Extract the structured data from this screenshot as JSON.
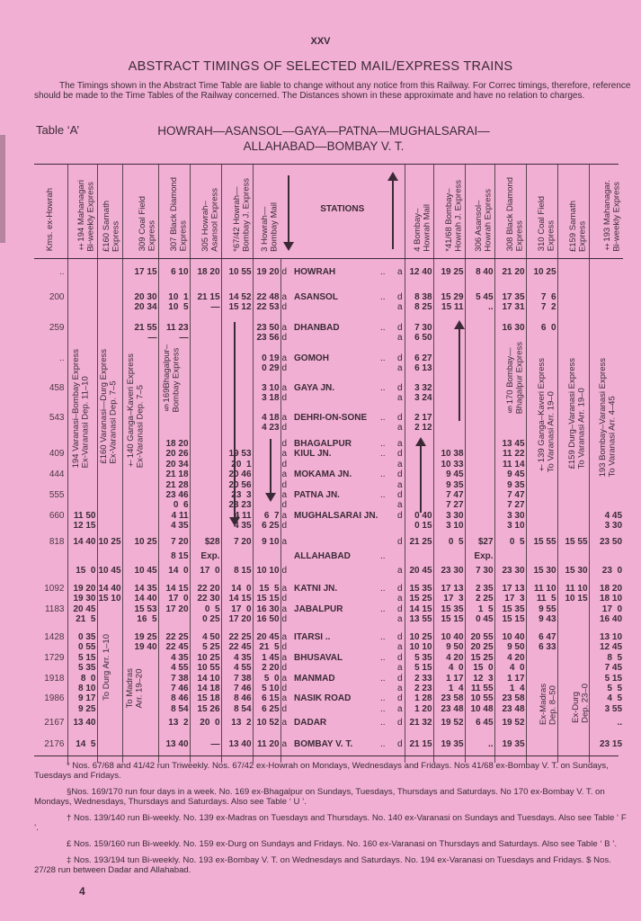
{
  "page_number_top": "XXV",
  "title": "ABSTRACT TIMINGS OF SELECTED MAIL/EXPRESS TRAINS",
  "intro": "The Timings shown in the Abstract Time Table are liable to change without any notice from this Railway. For Correc timings, therefore, reference should be made to the Time Tables of the Railway concerned. The Distances shown in these approximate and have no relation to charges.",
  "table_label": "Table ‘A’",
  "route_line1": "HOWRAH—ASANSOL—GAYA—PATNA—MUGHALSARAI—",
  "route_line2": "ALLAHABAD—BOMBAY V. T.",
  "colors": {
    "paper": "#f1afd3",
    "ink": "#3b2a36"
  },
  "table": {
    "headers": {
      "km": "Kms. ex-Howrah",
      "left": [
        "‡194 Mahanagari\nBi-weekly Express",
        "£160 Sarnath\nExpress",
        "309 Coal Field\nExpress",
        "307 Black Diamond\nExpress",
        "305 Howrah–\nAsansol Express",
        "*67/42 Howrah—\nBombay J. Express",
        "3 Howrah—\nBombay Mail"
      ],
      "stations": "STATIONS",
      "right": [
        "4 Bombay–\nHowrah Mail",
        "*41/68 Bombay–\nHowrah J. Express",
        "306 Asansol–\nHowrah Express",
        "308 Black Diamond\nExpress",
        "310 Coal Field\nExpress",
        "£159 Sarnath\nExpress",
        "‡193 Mahanagar.\nBi-weekly Express"
      ]
    },
    "rows": [
      {
        "key": "howrah",
        "km": "..",
        "left": [
          "",
          "",
          "17 15",
          "6 10",
          "18 20",
          "10 55",
          "19 20"
        ],
        "ad_l": "d",
        "station": "HOWRAH",
        "dots": "..",
        "ad_r": "a",
        "right": [
          "12 40",
          "19 25",
          "8 40",
          "21 20",
          "10 25",
          "",
          ""
        ]
      },
      {
        "key": "asansol",
        "km": "200",
        "left": [
          "",
          "",
          "20 30\n20 34",
          "10  1\n10  5",
          "21 15\n—",
          "14 52\n15 12",
          "22 48\n22 53"
        ],
        "ad_l": "a\nd",
        "station": "ASANSOL",
        "dots": "..",
        "ad_r": "d\na",
        "right": [
          "8 38\n8 25",
          "15 29\n15 11",
          "5 45\n..",
          "17 35\n17 31",
          "7  6\n7  2",
          "",
          ""
        ]
      },
      {
        "key": "dhanbad",
        "km": "259",
        "left": [
          "",
          "",
          "21 55\n—",
          "11 23\n—",
          "",
          "",
          "23 50\n23 56"
        ],
        "ad_l": "a\nd",
        "station": "DHANBAD",
        "dots": "..",
        "ad_r": "d\na",
        "right": [
          "7 30\n6 50",
          "",
          "",
          "16 30",
          "6  0",
          "",
          ""
        ]
      },
      {
        "key": "gomoh",
        "km": "..",
        "left": [
          "",
          "",
          "",
          "",
          "",
          "",
          "0 19\n0 29"
        ],
        "ad_l": "a\nd",
        "station": "GOMOH",
        "dots": "..",
        "ad_r": "d\na",
        "right": [
          "6 27\n6 13",
          "",
          "",
          "",
          "",
          "",
          ""
        ]
      },
      {
        "key": "gaya",
        "km": "458",
        "left": [
          "",
          "",
          "",
          "",
          "",
          "",
          "3 10\n3 18"
        ],
        "ad_l": "a\nd",
        "station": "GAYA JN.",
        "dots": "..",
        "ad_r": "d\na",
        "right": [
          "3 32\n3 24",
          "",
          "",
          "",
          "",
          "",
          ""
        ]
      },
      {
        "key": "dehri",
        "km": "543",
        "left": [
          "",
          "",
          "",
          "",
          "",
          "",
          "4 18\n4 23"
        ],
        "ad_l": "a\nd",
        "station": "DEHRI-ON-SONE",
        "dots": "..",
        "ad_r": "d\na",
        "right": [
          "2 17\n2 12",
          "",
          "",
          "",
          "",
          "",
          ""
        ]
      },
      {
        "key": "block",
        "km": "\n409\n\n444\n\n555\n\n660\n",
        "left": [
          "\n\n\n\n\n\n\n11 50\n12 15",
          "",
          "",
          "18 20\n20 26\n20 34\n21 18\n21 28\n23 46\n0  6\n4 11\n4 35",
          "",
          "\n19 53\n20  1\n20 46\n20 56\n23  3\n23 23\n4 11\n4 35",
          "\n\n\n\n\n\n\n6  7\n6 25"
        ],
        "ad_l": "d\na\nd\na\nd\na\nd\na\nd",
        "station": "BHAGALPUR\nKIUL JN.\n\nMOKAMA JN.\n\nPATNA JN.\n\nMUGHALSARAI JN.",
        "dots": "..\n..\n\n..\n\n..",
        "ad_r": "a\nd\na\nd\na\nd\na\nd",
        "right": [
          "\n\n\n\n\n\n\n0 40\n0 15",
          "\n10 38\n10 33\n9 45\n9 35\n7 47\n7 27\n3 30\n3 10",
          "",
          "13 45\n11 22\n11 14\n9 45\n9 35\n7 47\n7 27\n3 30\n3 10",
          "",
          "",
          "\n\n\n\n\n\n\n4 45\n3 30"
        ]
      },
      {
        "key": "allahabad",
        "km": "818",
        "left": [
          "14 40\n\n15  0",
          "10 25\n\n10 45",
          "10 25\n\n10 45",
          "7 20\n8 15\n14  0",
          "$28\nExp.\n17  0",
          "7 20\n\n8 15",
          "9 10\n\n10 10"
        ],
        "ad_l": "a\n\nd",
        "station": "\nALLAHABAD",
        "dots": "\n..",
        "ad_r": "d\n\na",
        "right": [
          "21 25\n\n20 45",
          "0  5\n\n23 30",
          "$27\nExp.\n7 30",
          "0  5\n\n23 30",
          "15 55\n\n15 30",
          "15 55\n\n15 30",
          "23 50\n\n23  0"
        ]
      },
      {
        "key": "katni",
        "km": "1092\n\n1183",
        "left": [
          "19 20\n19 30\n20 45\n21  5",
          "14 40\n15 10",
          "14 35\n14 40\n15 53\n16  5",
          "14 15\n17  0\n17 20",
          "22 20\n22 30\n0  5\n0 25",
          "14  0\n14 15\n17  0\n17 20",
          "15  5\n15 15\n16 30\n16 50"
        ],
        "ad_l": "a\nd\na\nd",
        "station": "KATNI JN.\n\nJABALPUR",
        "dots": "..\n\n..",
        "ad_r": "d\na\nd\na",
        "right": [
          "15 35\n15 25\n14 15\n13 55",
          "17 13\n17  3\n15 35\n15 15",
          "2 35\n2 25\n1  5\n0 45",
          "17 13\n17  3\n15 35\n15 15",
          "11 10\n11  5\n9 55\n9 43",
          "11 10\n10 15",
          "18 20\n18 10\n17  0\n16 40"
        ]
      },
      {
        "key": "itarsi",
        "km": "1428\n\n1729\n\n1918\n\n1986\n",
        "left": [
          "0 35\n0 55\n5 15\n5 35\n8  0\n8 10\n9 17\n9 25",
          "",
          "19 25\n19 40",
          "22 25\n22 45\n4 35\n4 55\n7 38\n7 46\n8 46\n8 54",
          "4 50\n5 25\n10 25\n10 55\n14 10\n14 18\n15 18\n15 26",
          "22 25\n22 45\n4 35\n4 55\n7 38\n7 46\n8 46\n8 54",
          "20 45\n21  5\n1 45\n2 20\n5  0\n5 10\n6 15\n6 25"
        ],
        "ad_l": "a\nd\na\nd\na\nd\na\nd",
        "station": "ITARSI ..\n\nBHUSAVAL\n\nMANMAD\n\nNASIK ROAD",
        "dots": "..\n\n..\n\n..\n\n..\n..",
        "ad_r": "d\na\nd\na\nd\na\nd\na",
        "right": [
          "10 25\n10 10\n5 35\n5 15\n2 33\n2 23\n1 28\n1 20",
          "10 40\n9 50\n4 20\n4  0\n1 17\n1  4\n23 58\n23 48",
          "20 55\n20 25\n15 25\n15  0\n12  3\n11 55\n10 55\n10 48",
          "10 40\n9 50\n4 20\n4  0\n1 17\n1  4\n23 58\n23 48",
          "6 47\n6 33",
          "",
          "13 10\n12 45\n8  5\n7 45\n5 15\n5  5\n4  5\n3 55"
        ]
      },
      {
        "key": "dadar",
        "km": "2167",
        "left": [
          "13 40",
          "",
          "",
          "13  2",
          "20  0",
          "13  2",
          "10 52"
        ],
        "ad_l": "a",
        "station": "DADAR",
        "dots": "..",
        "ad_r": "d",
        "right": [
          "21 32",
          "19 52",
          "6 45",
          "19 52",
          "",
          "",
          ".."
        ]
      },
      {
        "key": "bombay",
        "km": "2176",
        "left": [
          "14  5",
          "",
          "",
          "13 40",
          "—",
          "13 40",
          "11 20"
        ],
        "ad_l": "a",
        "station": "BOMBAY V. T.",
        "dots": "..",
        "ad_r": "d",
        "right": [
          "21 15",
          "19 35",
          "..",
          "19 35",
          "",
          "",
          "23 15"
        ]
      }
    ],
    "notes": {
      "n194": "194 Varanasi–Bombay Express\nEx-Varanasi Dep. 11–10",
      "n160": "£160 Varanasi—Durg Express\nEx-Varanasi Dep. 7–5",
      "n140": "†140 Ganga–Kaveri Express\nEx-Varanasi Dep. 7–5",
      "n169": "§169Bhagalpur–\nBombay Express",
      "n170": "§170 Bombay—\nBhagalpur Express",
      "n139": "†139 Ganga–Kaveri Express\nTo Varanasi Arr. 19–0",
      "n159": "£159 Durg–Varanasi Express\nTo Varanasi Arr. 19–0",
      "n193": "193 Bombay–Varanasi Express\nTo Varanasi Arr. 4–45",
      "to_durg": "To Durg Arr. 1–10",
      "to_madras": "To Madras\nArr. 19–20",
      "ex_madras": "Ex-Madras\nDep. 8–50",
      "ex_durg": "Ex-Durg\nDep. 23–0"
    }
  },
  "footnotes": [
    "* Nos. 67/68 and 41/42 run Triweekly. Nos. 67/42 ex-Howrah on Mondays, Wednesdays and Fridays. Nos 41/68 ex-Bombay V. T. on Sundays, Tuesdays and Fridays.",
    "§Nos. 169/170 run four days in a week. No. 169 ex-Bhagalpur on Sundays, Tuesdays, Thursdays and Saturdays. No 170 ex-Bombay V. T. on Mondays, Wednesdays, Thursdays and Saturdays. Also see Table ‘ U ’.",
    "† Nos. 139/140 run Bi-weekly. No. 139 ex-Madras on Tuesdays and Thursdays. No. 140 ex-Varanasi on Sundays and Tuesdays. Also see Table ‘ F ’.",
    "£ Nos. 159/160 run Bi-weekly. No. 159 ex-Durg on Sundays and Fridays. No. 160 ex-Varanasi on Thursdays and Saturdays. Also see Table ‘ B ’.",
    "‡ Nos. 193/194 tun Bi-weekly. No. 193 ex-Bombay V. T. on Wednesdays and Saturdays. No. 194 ex-Varanasi on Tuesdays and Fridays.        $ Nos. 27/28 run between Dadar and Allahabad."
  ],
  "page_number": "4"
}
